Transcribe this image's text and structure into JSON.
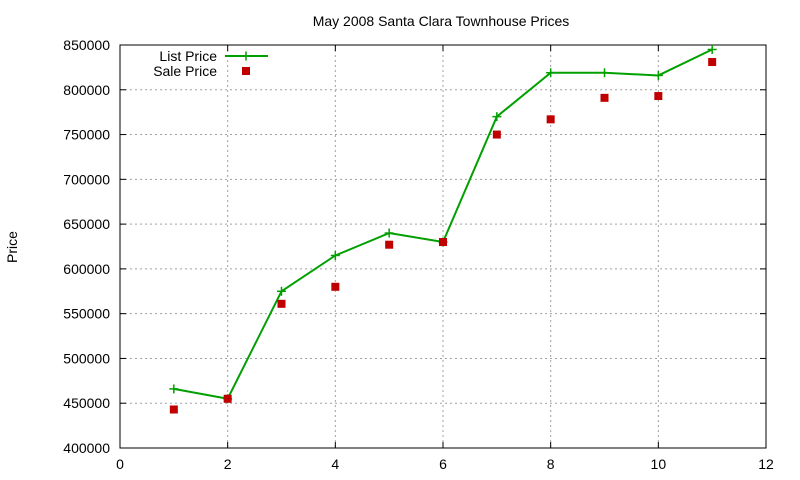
{
  "chart_data": {
    "type": "line",
    "title": "May 2008 Santa Clara Townhouse Prices",
    "xlabel": "",
    "ylabel": "Price",
    "xlim": [
      0,
      12
    ],
    "ylim": [
      400000,
      850000
    ],
    "x_ticks": [
      0,
      2,
      4,
      6,
      8,
      10,
      12
    ],
    "y_ticks": [
      400000,
      450000,
      500000,
      550000,
      600000,
      650000,
      700000,
      750000,
      800000,
      850000
    ],
    "grid": true,
    "legend_position": "top-left",
    "series": [
      {
        "name": "List Price",
        "style": "line+cross-markers",
        "color": "#00a000",
        "x": [
          1,
          2,
          3,
          4,
          5,
          6,
          7,
          8,
          9,
          10,
          11
        ],
        "values": [
          466000,
          455000,
          575000,
          615000,
          640000,
          630000,
          770000,
          819000,
          819000,
          816000,
          845000
        ]
      },
      {
        "name": "Sale Price",
        "style": "square-markers",
        "color": "#c00000",
        "x": [
          1,
          2,
          3,
          4,
          5,
          6,
          7,
          8,
          9,
          10,
          11
        ],
        "values": [
          443000,
          455000,
          561000,
          580000,
          627000,
          630000,
          750000,
          767000,
          791000,
          793000,
          831000
        ]
      }
    ]
  }
}
